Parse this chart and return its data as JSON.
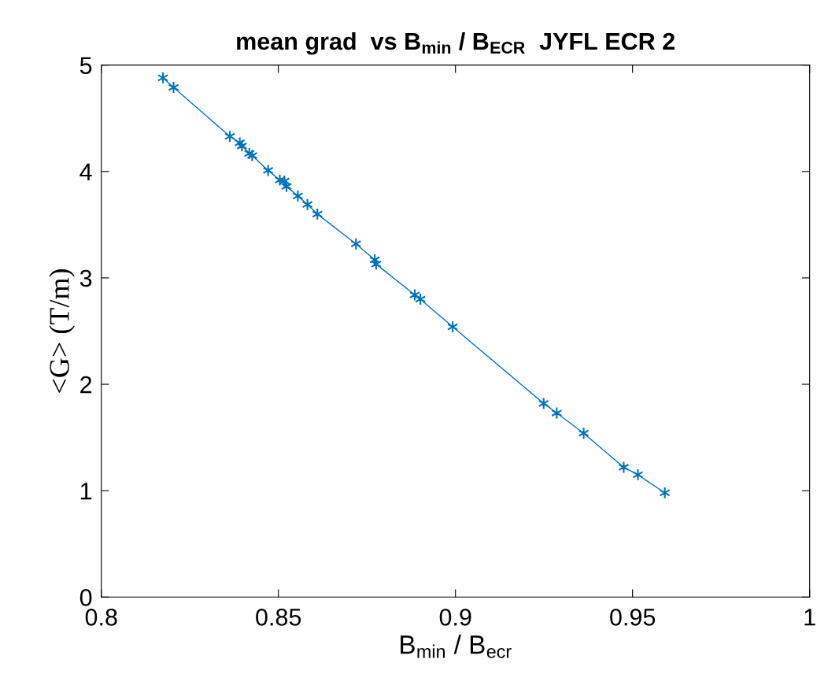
{
  "chart_data": {
    "type": "line",
    "title": "mean grad  vs B$_{min}$ / B$_{ECR}$  JYFL ECR 2",
    "xlabel": "B$_{min}$ / B$_{ecr}$",
    "ylabel": "<G> (T/m)",
    "x": [
      0.8174,
      0.8204,
      0.8363,
      0.8391,
      0.8397,
      0.8418,
      0.8426,
      0.8471,
      0.8504,
      0.8517,
      0.8523,
      0.8555,
      0.8582,
      0.861,
      0.8719,
      0.8772,
      0.8776,
      0.8885,
      0.8901,
      0.8992,
      0.9249,
      0.9286,
      0.9362,
      0.9475,
      0.9515,
      0.9591
    ],
    "series": [
      {
        "color": "#0072bd",
        "values": [
          4.88,
          4.79,
          4.33,
          4.27,
          4.24,
          4.17,
          4.15,
          4.01,
          3.92,
          3.91,
          3.86,
          3.77,
          3.69,
          3.6,
          3.32,
          3.17,
          3.13,
          2.84,
          2.8,
          2.54,
          1.82,
          1.73,
          1.54,
          1.22,
          1.15,
          0.98
        ]
      }
    ],
    "xlim": [
      0.8,
      1
    ],
    "xticks": [
      0.8,
      0.85,
      0.9,
      0.95,
      1
    ],
    "ylim": [
      0,
      5
    ],
    "yticks": [
      0,
      1,
      2,
      3,
      4,
      5
    ],
    "marker": "cross",
    "line_style": "solid",
    "grid": false,
    "legend": false
  }
}
